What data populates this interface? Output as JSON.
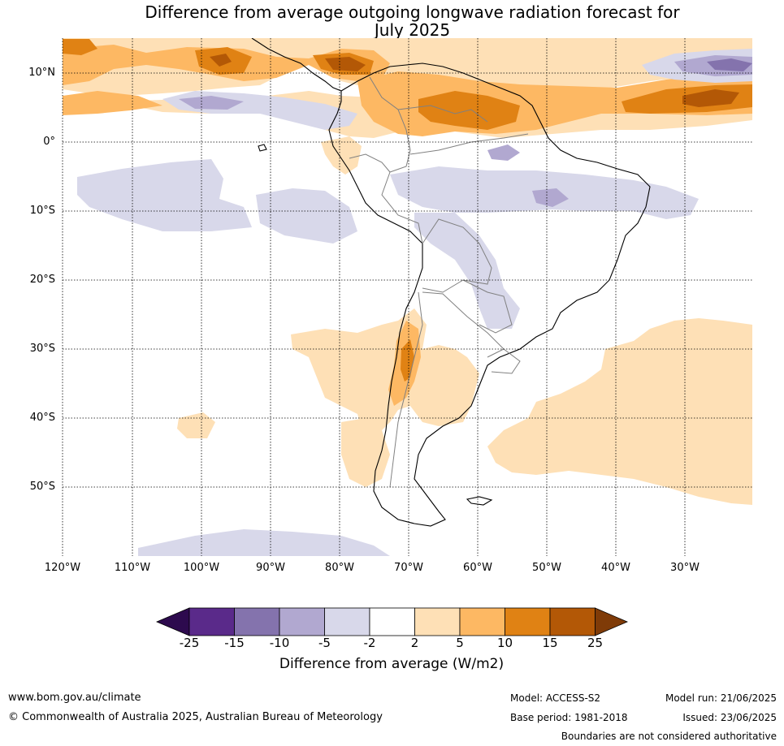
{
  "title": {
    "line1": "Difference from average outgoing longwave radiation forecast for",
    "line2": "July 2025"
  },
  "axes": {
    "lat_labels": [
      "10°N",
      "0°",
      "10°S",
      "20°S",
      "30°S",
      "40°S",
      "50°S"
    ],
    "lon_labels": [
      "120°W",
      "110°W",
      "100°W",
      "90°W",
      "80°W",
      "70°W",
      "60°W",
      "50°W",
      "40°W",
      "30°W"
    ]
  },
  "colorbar": {
    "label": "Difference from average (W/m2)",
    "ticks": [
      "-25",
      "-15",
      "-10",
      "-5",
      "-2",
      "2",
      "5",
      "10",
      "15",
      "25"
    ],
    "colors": {
      "below_min": "#2d0a4e",
      "n25_n15": "#5a2a8a",
      "n15_n10": "#8473ad",
      "n10_n5": "#b1a8d0",
      "n5_n2": "#d8d8ea",
      "n2_p2": "#ffffff",
      "p2_p5": "#fee0b6",
      "p5_p10": "#fdb863",
      "p10_p15": "#e08214",
      "p15_p25": "#b35806",
      "above_max": "#7f3b08"
    }
  },
  "footer": {
    "website": "www.bom.gov.au/climate",
    "copyright": "© Commonwealth of Australia 2025, Australian Bureau of Meteorology",
    "model": "Model: ACCESS-S2",
    "base_period": "Base period: 1981-2018",
    "model_run": "Model run: 21/06/2025",
    "issued": "Issued: 23/06/2025",
    "disclaimer": "Boundaries are not considered authoritative"
  }
}
